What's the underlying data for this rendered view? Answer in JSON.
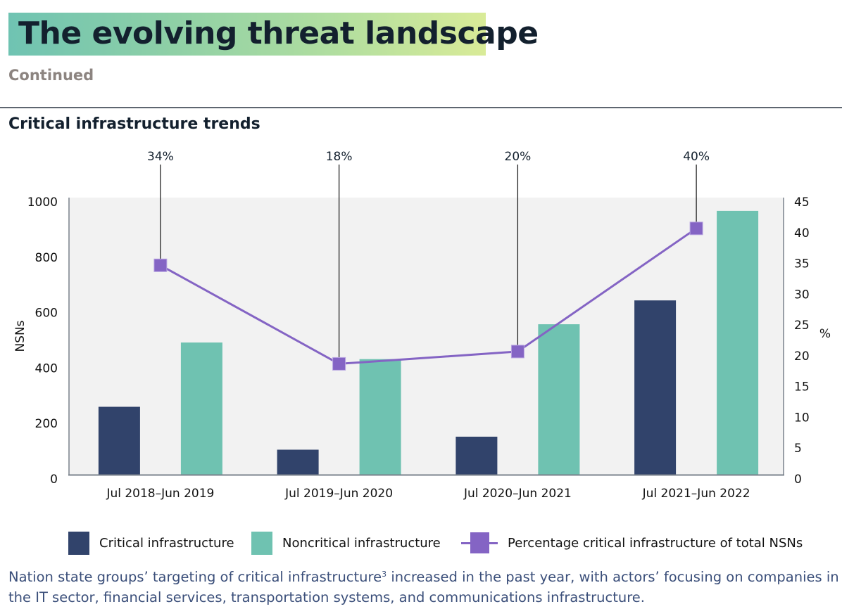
{
  "header": {
    "title": "The evolving threat landscape",
    "subtitle": "Continued",
    "section_title": "Critical infrastructure trends",
    "gradient_colors": [
      "#6fc3b2",
      "#d9eb98"
    ]
  },
  "chart_data": {
    "type": "bar",
    "title": "Critical infrastructure trends",
    "categories": [
      "Jul 2018–Jun 2019",
      "Jul 2019–Jun 2020",
      "Jul 2020–Jun 2021",
      "Jul 2021–Jun 2022"
    ],
    "series": [
      {
        "name": "Critical infrastructure",
        "type": "bar",
        "axis": "left",
        "color": "#31436b",
        "values": [
          245,
          90,
          137,
          629
        ]
      },
      {
        "name": "Noncritical infrastructure",
        "type": "bar",
        "axis": "left",
        "color": "#6fc2b1",
        "values": [
          477,
          417,
          543,
          952
        ]
      },
      {
        "name": "Percentage critical infrastructure of total NSNs",
        "type": "line",
        "axis": "right",
        "color": "#8464c4",
        "values": [
          34,
          18,
          20,
          40
        ],
        "marker": "square"
      }
    ],
    "annotations": [
      "34%",
      "18%",
      "20%",
      "40%"
    ],
    "ylabel": "NSNs",
    "ylabel_right": "%",
    "ylim": [
      0,
      1000
    ],
    "ylim_right": [
      0,
      45
    ],
    "yticks": [
      "0",
      "200",
      "400",
      "600",
      "800",
      "1000"
    ],
    "yticks_right": [
      "0",
      "5",
      "10",
      "15",
      "20",
      "25",
      "30",
      "35",
      "40",
      "45"
    ],
    "grid": false,
    "legend_position": "bottom",
    "plot_background": "#f2f2f2"
  },
  "legend": {
    "items": [
      {
        "label": "Critical infrastructure",
        "color": "#31436b"
      },
      {
        "label": "Noncritical infrastructure",
        "color": "#6fc2b1"
      },
      {
        "label": "Percentage critical infrastructure of total NSNs",
        "color": "#8464c4"
      }
    ]
  },
  "caption": {
    "part1": "Nation state groups’ targeting of critical infrastructure",
    "footnote": "3",
    "part2": " increased in the past year, with actors’ focusing on companies in the IT sector, financial services, transportation systems, and communications infrastructure."
  }
}
